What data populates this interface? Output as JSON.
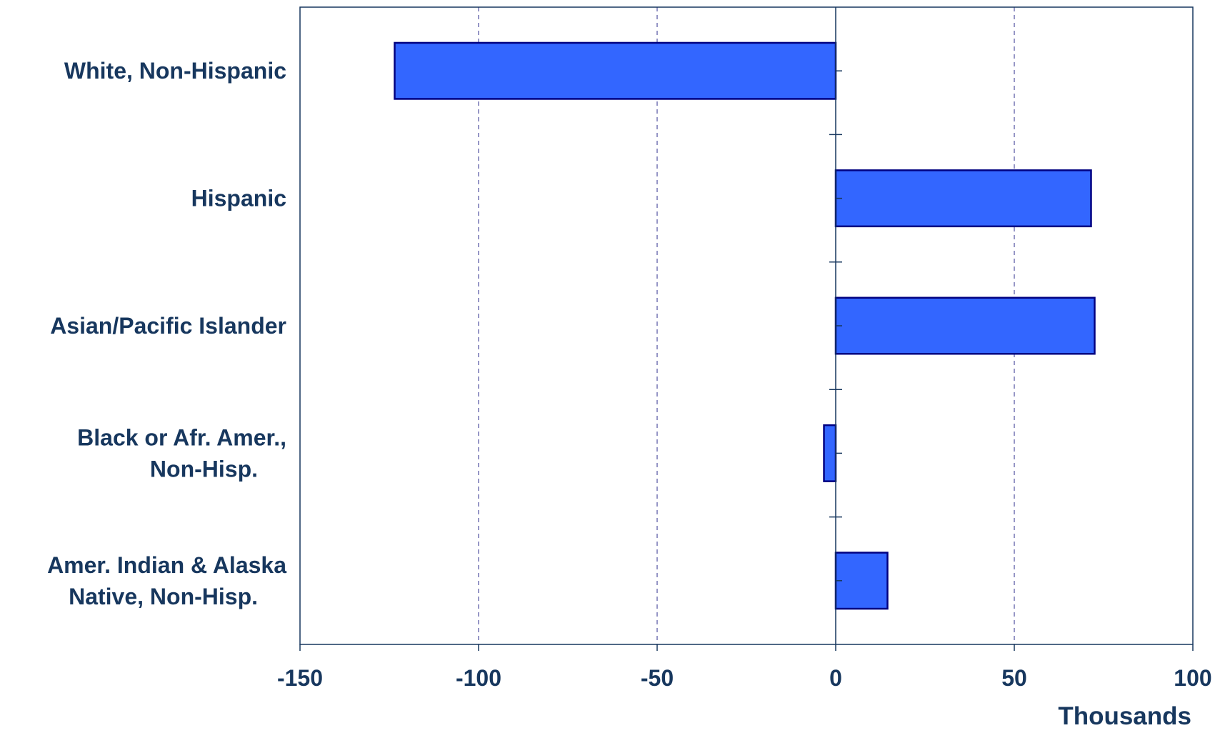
{
  "chart_data": {
    "type": "bar",
    "orientation": "horizontal",
    "categories": [
      [
        "White, Non-Hispanic"
      ],
      [
        "Hispanic"
      ],
      [
        "Asian/Pacific Islander"
      ],
      [
        "Black or Afr. Amer.,",
        "Non-Hisp."
      ],
      [
        "Amer. Indian & Alaska",
        "Native, Non-Hisp."
      ]
    ],
    "values": [
      -123.5,
      71.5,
      72.5,
      -3.3,
      14.5
    ],
    "xlim": [
      -150,
      100
    ],
    "xticks": [
      -150,
      -100,
      -50,
      0,
      50,
      100
    ],
    "xlabel": "Thousands",
    "ylabel": "",
    "title": "",
    "grid": "vertical dashed",
    "legend": "none",
    "colors": {
      "bar_fill": "#3366ff",
      "bar_stroke": "#000080",
      "axis": "#17375e",
      "grid": "#5050a0",
      "text": "#17375e"
    }
  }
}
